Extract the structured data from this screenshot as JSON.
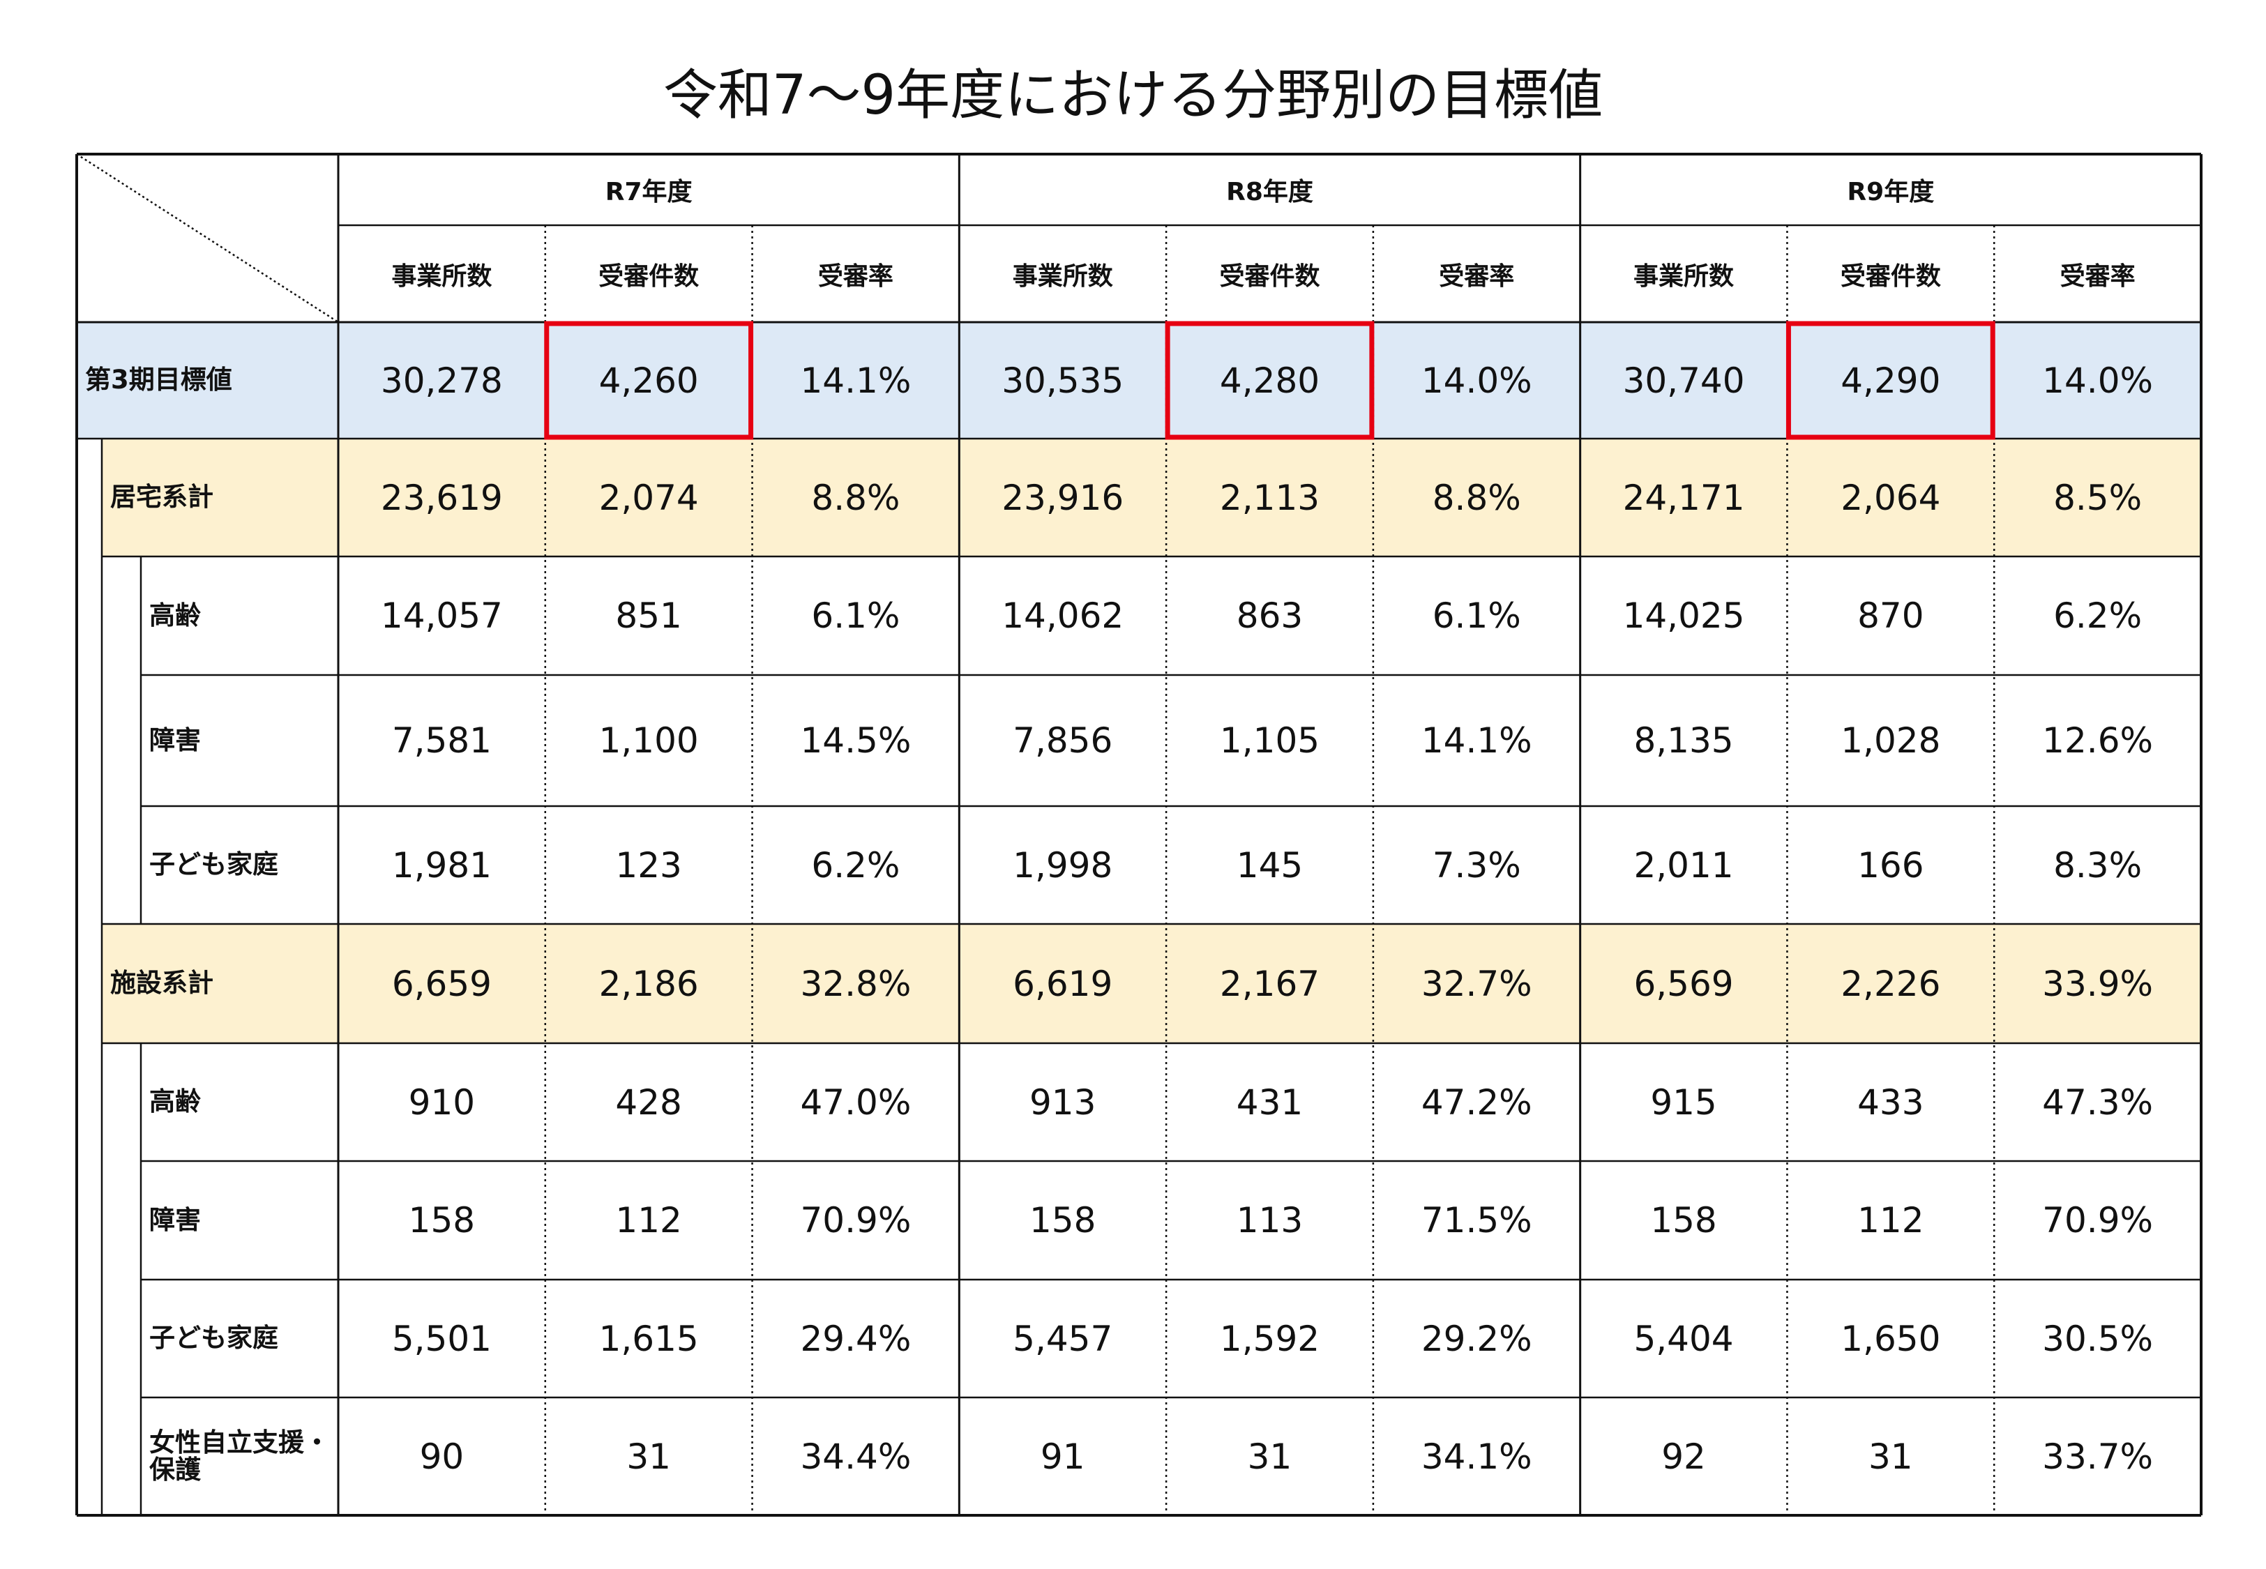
{
  "title": "令和7～9年度における分野別の目標値",
  "table": {
    "groups": [
      {
        "label": "R7年度",
        "columns": [
          "事業所数",
          "受審件数",
          "受審率"
        ]
      },
      {
        "label": "R8年度",
        "columns": [
          "事業所数",
          "受審件数",
          "受審率"
        ]
      },
      {
        "label": "R9年度",
        "columns": [
          "事業所数",
          "受審件数",
          "受審率"
        ]
      }
    ],
    "rows": [
      {
        "label": "第3期目標値",
        "cells": [
          "30,278",
          "4,260",
          "14.1%",
          "30,535",
          "4,280",
          "14.0%",
          "30,740",
          "4,290",
          "14.0%"
        ]
      },
      {
        "label": "居宅系計",
        "cells": [
          "23,619",
          "2,074",
          "8.8%",
          "23,916",
          "2,113",
          "8.8%",
          "24,171",
          "2,064",
          "8.5%"
        ]
      },
      {
        "label": "高齢",
        "cells": [
          "14,057",
          "851",
          "6.1%",
          "14,062",
          "863",
          "6.1%",
          "14,025",
          "870",
          "6.2%"
        ]
      },
      {
        "label": "障害",
        "cells": [
          "7,581",
          "1,100",
          "14.5%",
          "7,856",
          "1,105",
          "14.1%",
          "8,135",
          "1,028",
          "12.6%"
        ]
      },
      {
        "label": "子ども家庭",
        "cells": [
          "1,981",
          "123",
          "6.2%",
          "1,998",
          "145",
          "7.3%",
          "2,011",
          "166",
          "8.3%"
        ]
      },
      {
        "label": "施設系計",
        "cells": [
          "6,659",
          "2,186",
          "32.8%",
          "6,619",
          "2,167",
          "32.7%",
          "6,569",
          "2,226",
          "33.9%"
        ]
      },
      {
        "label": "高齢",
        "cells": [
          "910",
          "428",
          "47.0%",
          "913",
          "431",
          "47.2%",
          "915",
          "433",
          "47.3%"
        ]
      },
      {
        "label": "障害",
        "cells": [
          "158",
          "112",
          "70.9%",
          "158",
          "113",
          "71.5%",
          "158",
          "112",
          "70.9%"
        ]
      },
      {
        "label": "子ども家庭",
        "cells": [
          "5,501",
          "1,615",
          "29.4%",
          "5,457",
          "1,592",
          "29.2%",
          "5,404",
          "1,650",
          "30.5%"
        ]
      },
      {
        "label": "女性自立支援・保護",
        "cells": [
          "90",
          "31",
          "34.4%",
          "91",
          "31",
          "34.1%",
          "92",
          "31",
          "33.7%"
        ]
      }
    ]
  }
}
